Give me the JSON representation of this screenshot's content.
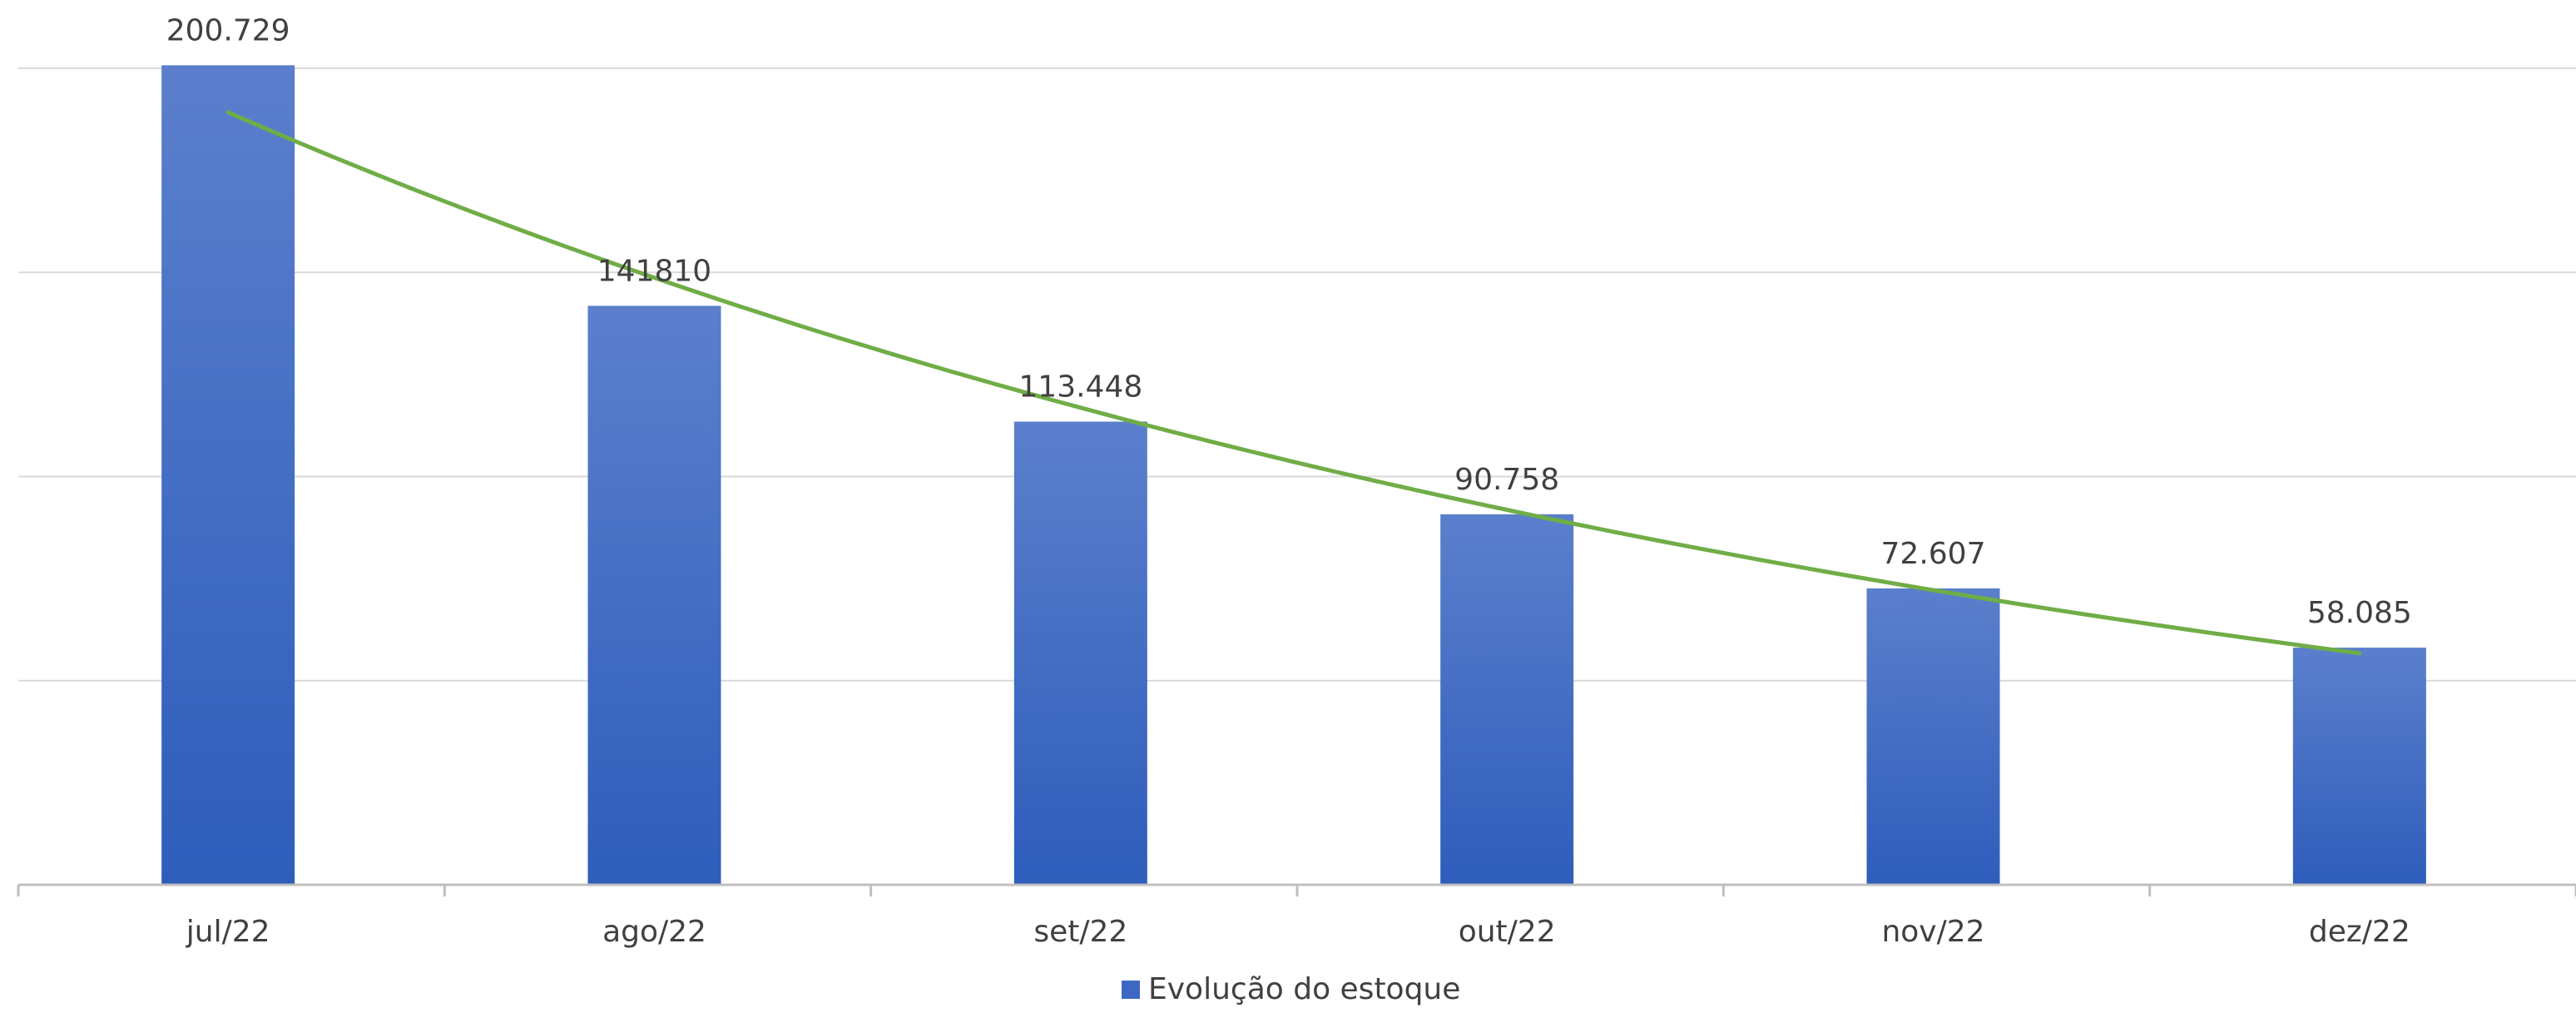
{
  "chart_data": {
    "type": "bar",
    "title": "",
    "xlabel": "",
    "ylabel": "",
    "categories": [
      "jul/22",
      "ago/22",
      "set/22",
      "out/22",
      "nov/22",
      "dez/22"
    ],
    "series": [
      {
        "name": "Evolução do estoque",
        "values": [
          200729,
          141810,
          113448,
          90758,
          72607,
          58085
        ]
      }
    ],
    "data_labels": [
      "200.729",
      "141810",
      "113.448",
      "90.758",
      "72.607",
      "58.085"
    ],
    "ylim": [
      0,
      200000
    ],
    "gridlines": [
      0,
      50000,
      100000,
      150000,
      200000
    ],
    "grid": true,
    "trendline": {
      "type": "exponential",
      "color": "#70ad47"
    },
    "legend": {
      "position": "bottom",
      "label": "Evolução do estoque"
    },
    "colors": {
      "bar_top": "#5b7fcc",
      "bar_bottom": "#2e5dbb",
      "trendline": "#70ad47",
      "grid": "#d9d9d9"
    }
  }
}
